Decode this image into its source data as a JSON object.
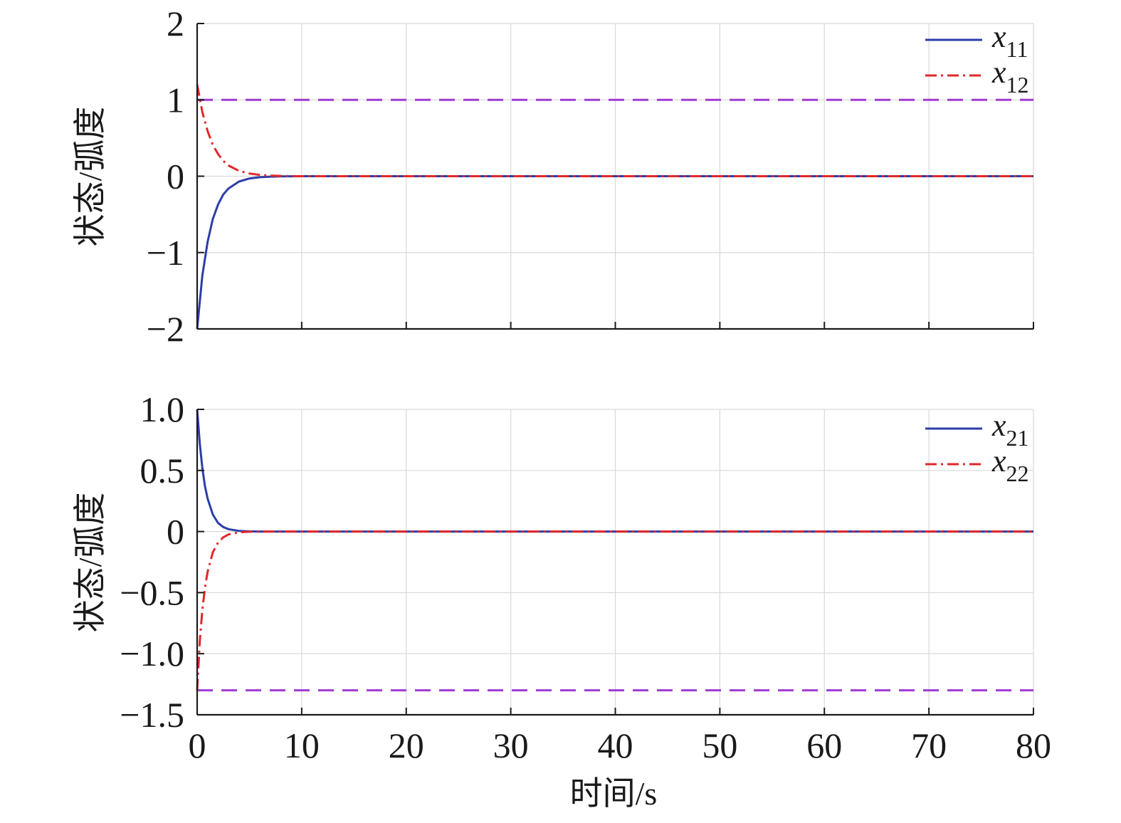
{
  "chart_data": [
    {
      "type": "line",
      "ylabel": "状态/弧度",
      "xlabel": "",
      "xlim": [
        0,
        80
      ],
      "ylim": [
        -2,
        2
      ],
      "x_ticks": [
        "0",
        "10",
        "20",
        "30",
        "40",
        "50",
        "60",
        "70",
        "80"
      ],
      "show_x_tick_labels": false,
      "y_ticks": [
        "2",
        "1",
        "0",
        "−1",
        "−2"
      ],
      "y_tick_values": [
        2,
        1,
        0,
        -1,
        -2
      ],
      "grid": true,
      "legend_position": "top-right",
      "series": [
        {
          "name": "x",
          "subscript": "11",
          "style": "solid",
          "color": "#2b3ea8",
          "x": [
            0,
            0.5,
            1,
            1.5,
            2,
            2.5,
            3,
            4,
            5,
            6,
            7,
            8,
            9,
            10,
            80
          ],
          "y": [
            -2.0,
            -1.3,
            -0.86,
            -0.56,
            -0.37,
            -0.24,
            -0.16,
            -0.07,
            -0.03,
            -0.013,
            -0.006,
            -0.003,
            -0.001,
            0,
            0
          ]
        },
        {
          "name": "x",
          "subscript": "12",
          "style": "dashdot",
          "color": "#e0282a",
          "x": [
            0,
            0.5,
            1,
            1.5,
            2,
            2.5,
            3,
            4,
            5,
            6,
            7,
            8,
            9,
            10,
            80
          ],
          "y": [
            1.2,
            0.84,
            0.59,
            0.41,
            0.29,
            0.2,
            0.14,
            0.07,
            0.035,
            0.017,
            0.008,
            0.004,
            0.002,
            0,
            0
          ]
        }
      ],
      "reference_lines": [
        {
          "y": 1.0,
          "color": "#a13ad3",
          "style": "dashed"
        }
      ]
    },
    {
      "type": "line",
      "ylabel": "状态/弧度",
      "xlabel": "时间/s",
      "xlim": [
        0,
        80
      ],
      "ylim": [
        -1.5,
        1.0
      ],
      "x_ticks": [
        "0",
        "10",
        "20",
        "30",
        "40",
        "50",
        "60",
        "70",
        "80"
      ],
      "show_x_tick_labels": true,
      "y_ticks": [
        "1.0",
        "0.5",
        "0",
        "−0.5",
        "−1.0",
        "−1.5"
      ],
      "y_tick_values": [
        1.0,
        0.5,
        0,
        -0.5,
        -1.0,
        -1.5
      ],
      "grid": true,
      "legend_position": "top-right",
      "series": [
        {
          "name": "x",
          "subscript": "21",
          "style": "solid",
          "color": "#2b3ea8",
          "x": [
            0,
            0.25,
            0.5,
            0.75,
            1,
            1.5,
            2,
            2.5,
            3,
            4,
            5,
            6,
            80
          ],
          "y": [
            1.0,
            0.72,
            0.52,
            0.37,
            0.27,
            0.14,
            0.07,
            0.037,
            0.019,
            0.005,
            0.001,
            0,
            0
          ]
        },
        {
          "name": "x",
          "subscript": "22",
          "style": "dashdot",
          "color": "#e0282a",
          "x": [
            0,
            0.25,
            0.5,
            0.75,
            1,
            1.5,
            2,
            2.5,
            3,
            4,
            5,
            6,
            80
          ],
          "y": [
            -1.3,
            -0.9,
            -0.64,
            -0.46,
            -0.33,
            -0.17,
            -0.09,
            -0.047,
            -0.024,
            -0.006,
            -0.002,
            0,
            0
          ]
        }
      ],
      "reference_lines": [
        {
          "y": -1.3,
          "color": "#a13ad3",
          "style": "dashed"
        }
      ]
    }
  ]
}
